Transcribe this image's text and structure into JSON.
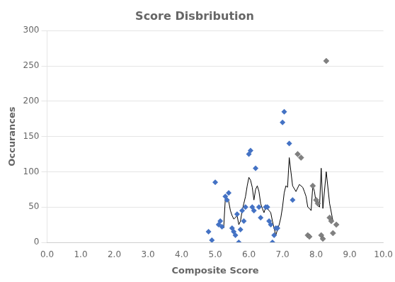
{
  "chart_data": {
    "type": "scatter",
    "title": "Score Disbribution",
    "xlabel": "Composite Score",
    "ylabel": "Occurances",
    "xlim": [
      0.0,
      10.0
    ],
    "ylim": [
      0,
      300
    ],
    "xticks": [
      {
        "value": 0.0,
        "label": "0.0"
      },
      {
        "value": 1.0,
        "label": "1.0"
      },
      {
        "value": 2.0,
        "label": "2.0"
      },
      {
        "value": 3.0,
        "label": "3.0"
      },
      {
        "value": 4.0,
        "label": "4.0"
      },
      {
        "value": 5.0,
        "label": "5.0"
      },
      {
        "value": 6.0,
        "label": "6.0"
      },
      {
        "value": 7.0,
        "label": "7.0"
      },
      {
        "value": 8.0,
        "label": "8.0"
      },
      {
        "value": 9.0,
        "label": "9.0"
      },
      {
        "value": 10.0,
        "label": "10.0"
      }
    ],
    "yticks": [
      0,
      50,
      100,
      150,
      200,
      250,
      300
    ],
    "grid": "y",
    "series": [
      {
        "type": "scatter",
        "color": "#4472C4",
        "marker": "diamond",
        "x": [
          4.8,
          4.9,
          5.0,
          5.1,
          5.15,
          5.2,
          5.3,
          5.35,
          5.4,
          5.5,
          5.55,
          5.6,
          5.65,
          5.7,
          5.75,
          5.8,
          5.85,
          5.9,
          6.0,
          6.05,
          6.1,
          6.15,
          6.2,
          6.3,
          6.35,
          6.5,
          6.55,
          6.6,
          6.65,
          6.7,
          6.75,
          6.8,
          6.85,
          7.0,
          7.05,
          7.2,
          7.3
        ],
        "values": [
          15,
          3,
          85,
          25,
          30,
          22,
          65,
          60,
          70,
          20,
          15,
          10,
          40,
          0,
          18,
          45,
          30,
          50,
          125,
          130,
          50,
          45,
          105,
          50,
          35,
          50,
          50,
          30,
          25,
          0,
          10,
          20,
          20,
          170,
          185,
          140,
          60
        ]
      },
      {
        "type": "scatter",
        "color": "#808080",
        "marker": "diamond",
        "x": [
          8.3,
          7.45,
          7.55,
          7.9,
          8.0,
          8.05,
          7.75,
          7.8,
          8.15,
          8.2,
          8.4,
          8.45,
          8.5,
          8.6
        ],
        "values": [
          257,
          125,
          120,
          80,
          60,
          55,
          10,
          8,
          10,
          5,
          35,
          30,
          13,
          25
        ]
      },
      {
        "type": "line",
        "color": "#000000",
        "line_style": "solid",
        "x": [
          5.25,
          5.3,
          5.35,
          5.4,
          5.45,
          5.5,
          5.55,
          5.6,
          5.65,
          5.7,
          5.75,
          5.8,
          5.85,
          5.9,
          5.95,
          6.0,
          6.05,
          6.1,
          6.15,
          6.2,
          6.25,
          6.3,
          6.35,
          6.4,
          6.45,
          6.5,
          6.55,
          6.6,
          6.65,
          6.7,
          6.75,
          6.8,
          6.85,
          6.9,
          6.95,
          7.0,
          7.05,
          7.1,
          7.15,
          7.2,
          7.3,
          7.4,
          7.5,
          7.6,
          7.65,
          7.7,
          7.75,
          7.8,
          7.85,
          7.9,
          7.95,
          8.0,
          8.05,
          8.1,
          8.15,
          8.2,
          8.3,
          8.4,
          8.5
        ],
        "values": [
          20,
          62,
          63,
          58,
          45,
          38,
          33,
          35,
          38,
          25,
          30,
          45,
          55,
          65,
          80,
          92,
          88,
          78,
          60,
          75,
          80,
          72,
          55,
          48,
          42,
          50,
          48,
          45,
          42,
          30,
          20,
          10,
          18,
          25,
          35,
          50,
          70,
          80,
          78,
          120,
          80,
          72,
          82,
          78,
          72,
          65,
          50,
          48,
          45,
          80,
          72,
          55,
          52,
          50,
          105,
          48,
          100,
          55,
          30
        ]
      }
    ]
  }
}
